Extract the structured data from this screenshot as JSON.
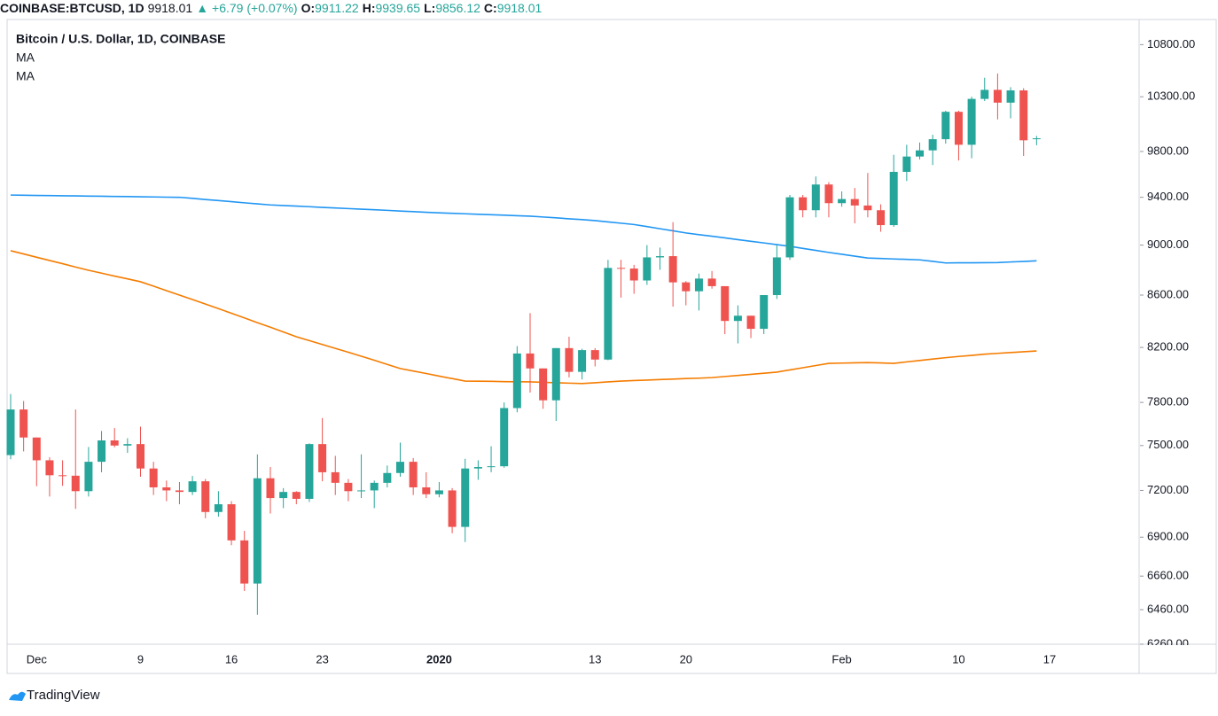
{
  "header": {
    "symbol": "COINBASE:BTCUSD, 1D",
    "change": "+6.79 (+0.07%)",
    "o_label": "O:",
    "h_label": "H:",
    "l_label": "L:",
    "c_label": "C:"
  },
  "chart_data": {
    "type": "candlestick",
    "title": "Bitcoin / U.S. Dollar, 1D, COINBASE",
    "categories": [
      null,
      null,
      "Dec",
      null,
      null,
      null,
      null,
      null,
      null,
      null,
      "9",
      null,
      null,
      null,
      null,
      null,
      null,
      "16",
      null,
      null,
      null,
      null,
      null,
      null,
      "23",
      null,
      null,
      null,
      null,
      null,
      null,
      null,
      null,
      "2020",
      null,
      null,
      null,
      null,
      null,
      null,
      null,
      null,
      null,
      null,
      null,
      "13",
      null,
      null,
      null,
      null,
      null,
      null,
      "20",
      null,
      null,
      null,
      null,
      null,
      null,
      null,
      null,
      null,
      null,
      null,
      "Feb",
      null,
      null,
      null,
      null,
      null,
      null,
      null,
      null,
      "10",
      null,
      null,
      null,
      null,
      null,
      null,
      "17"
    ],
    "open": [
      7435,
      7750,
      7555,
      7400,
      7300,
      7297,
      7195,
      7390,
      7535,
      7500,
      7510,
      7345,
      7220,
      7200,
      7190,
      7260,
      7060,
      7110,
      6880,
      6615,
      7280,
      7150,
      7190,
      7145,
      7510,
      7320,
      7250,
      7195,
      7200,
      7250,
      7315,
      7390,
      7220,
      7175,
      7200,
      6965,
      7345,
      7355,
      7360,
      7760,
      8155,
      8045,
      7815,
      8195,
      8020,
      8180,
      8110,
      8815,
      8810,
      8715,
      8900,
      8910,
      8700,
      8630,
      8730,
      8670,
      8400,
      8440,
      8340,
      8600,
      8900,
      9400,
      9290,
      9510,
      9350,
      9385,
      9330,
      9290,
      9165,
      9620,
      9755,
      9810,
      9910,
      10160,
      9860,
      10280,
      10365,
      10245,
      10360,
      9911.22,
      null
    ],
    "high": [
      7860,
      7810,
      7555,
      7420,
      7400,
      7750,
      7490,
      7600,
      7620,
      7550,
      7630,
      7390,
      7265,
      7255,
      7295,
      7275,
      7195,
      7130,
      6940,
      7440,
      7355,
      7215,
      7195,
      7515,
      7690,
      7430,
      7275,
      7440,
      7265,
      7365,
      7520,
      7415,
      7320,
      7255,
      7215,
      7410,
      7400,
      7495,
      7800,
      8210,
      8460,
      8045,
      8195,
      8280,
      8190,
      8195,
      8880,
      8880,
      8840,
      9000,
      8980,
      9190,
      8710,
      8770,
      8790,
      8670,
      8520,
      8440,
      8600,
      9000,
      9420,
      9420,
      9580,
      9530,
      9450,
      9480,
      9610,
      9340,
      9770,
      9860,
      9880,
      9950,
      10170,
      10170,
      10300,
      10480,
      10520,
      10390,
      10380,
      9939.65,
      null
    ],
    "low": [
      7407,
      7460,
      7228,
      7160,
      7230,
      7080,
      7160,
      7320,
      7488,
      7450,
      7290,
      7170,
      7130,
      7110,
      7170,
      7020,
      7030,
      6850,
      6570,
      6430,
      7050,
      7085,
      7110,
      7125,
      7260,
      7170,
      7130,
      7150,
      7085,
      7220,
      7290,
      7170,
      7150,
      7155,
      6925,
      6870,
      7270,
      7320,
      7350,
      7730,
      7870,
      7755,
      7670,
      7980,
      7965,
      8060,
      8105,
      8580,
      8610,
      8680,
      8800,
      8510,
      8520,
      8480,
      8650,
      8300,
      8230,
      8270,
      8300,
      8570,
      8880,
      9230,
      9230,
      9230,
      9320,
      9180,
      9230,
      9110,
      9150,
      9540,
      9730,
      9680,
      9870,
      9720,
      9740,
      10260,
      10090,
      10100,
      9760,
      9856.12,
      null
    ],
    "close": [
      7750,
      7555,
      7400,
      7300,
      7297,
      7195,
      7390,
      7535,
      7500,
      7510,
      7345,
      7220,
      7200,
      7190,
      7260,
      7060,
      7110,
      6880,
      6615,
      7280,
      7150,
      7190,
      7145,
      7510,
      7320,
      7250,
      7195,
      7200,
      7250,
      7315,
      7390,
      7220,
      7175,
      7200,
      6965,
      7345,
      7355,
      7360,
      7760,
      8155,
      8045,
      7815,
      8195,
      8020,
      8180,
      8110,
      8815,
      8810,
      8715,
      8900,
      8910,
      8700,
      8630,
      8730,
      8670,
      8400,
      8440,
      8340,
      8600,
      8900,
      9400,
      9290,
      9510,
      9350,
      9385,
      9330,
      9290,
      9165,
      9620,
      9755,
      9810,
      9910,
      10160,
      9860,
      10280,
      10365,
      10245,
      10360,
      9900,
      9918.01,
      null
    ],
    "up_color": "#26a69a",
    "down_color": "#ef5350",
    "series": [
      {
        "name": "MA",
        "color": "#2196f3",
        "values": [
          9419,
          9418,
          9416,
          9415,
          9413,
          9412,
          9410,
          9409,
          9407,
          9406,
          9404,
          9403,
          9401,
          9400,
          9391,
          9381,
          9372,
          9363,
          9353,
          9344,
          9335,
          9330,
          9325,
          9320,
          9314,
          9309,
          9304,
          9299,
          9294,
          9289,
          9283,
          9278,
          9273,
          9268,
          9264,
          9260,
          9256,
          9252,
          9248,
          9244,
          9240,
          9233,
          9226,
          9218,
          9211,
          9203,
          9192,
          9181,
          9170,
          9153,
          9135,
          9118,
          9100,
          9086,
          9073,
          9059,
          9045,
          9031,
          9018,
          9004,
          8990,
          8973,
          8957,
          8940,
          8925,
          8910,
          8895,
          8891,
          8887,
          8884,
          8880,
          8868,
          8855,
          8856,
          8856,
          8857,
          8858,
          8863,
          8867,
          8872,
          null
        ]
      },
      {
        "name": "MA",
        "color": "#f57c00",
        "values": [
          8954,
          8928,
          8901,
          8875,
          8849,
          8822,
          8796,
          8773,
          8750,
          8728,
          8705,
          8670,
          8635,
          8600,
          8565,
          8530,
          8495,
          8459,
          8423,
          8387,
          8352,
          8316,
          8280,
          8251,
          8222,
          8193,
          8164,
          8135,
          8105,
          8074,
          8044,
          8026,
          8008,
          7989,
          7971,
          7953,
          7952,
          7951,
          7949,
          7948,
          7947,
          7944,
          7941,
          7938,
          7935,
          7941,
          7947,
          7953,
          7957,
          7960,
          7964,
          7967,
          7971,
          7974,
          7978,
          7986,
          7994,
          8002,
          8010,
          8018,
          8034,
          8050,
          8066,
          8082,
          8084,
          8086,
          8088,
          8085,
          8082,
          8093,
          8103,
          8114,
          8124,
          8133,
          8141,
          8150,
          8156,
          8162,
          8168,
          8174,
          null
        ]
      }
    ],
    "log_scale": true,
    "grid": false,
    "ylim": [
      6260,
      11050
    ],
    "yticks": [
      {
        "value": 10800,
        "label": "10800.00"
      },
      {
        "value": 10300,
        "label": "10300.00"
      },
      {
        "value": 9800,
        "label": "9800.00"
      },
      {
        "value": 9400,
        "label": "9400.00"
      },
      {
        "value": 9000,
        "label": "9000.00"
      },
      {
        "value": 8600,
        "label": "8600.00"
      },
      {
        "value": 8200,
        "label": "8200.00"
      },
      {
        "value": 7800,
        "label": "7800.00"
      },
      {
        "value": 7500,
        "label": "7500.00"
      },
      {
        "value": 7200,
        "label": "7200.00"
      },
      {
        "value": 6900,
        "label": "6900.00"
      },
      {
        "value": 6660,
        "label": "6660.00"
      },
      {
        "value": 6460,
        "label": "6460.00"
      },
      {
        "value": 6260,
        "label": "6260.00"
      }
    ]
  },
  "footer": {
    "brand": "TradingView"
  }
}
